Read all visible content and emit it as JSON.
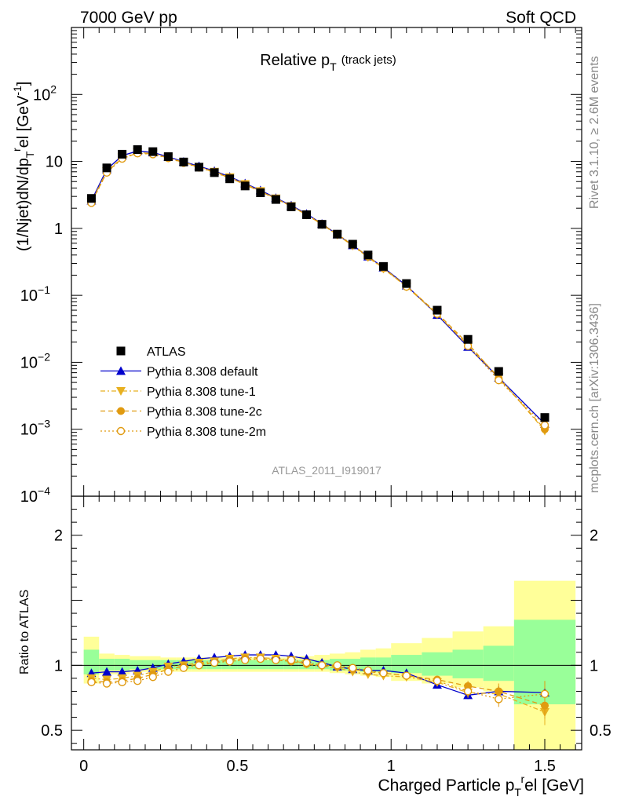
{
  "header": {
    "left": "7000 GeV pp",
    "right": "Soft QCD"
  },
  "title": {
    "main": "Relative p",
    "main_sub": "T",
    "suffix": "(track jets)"
  },
  "side_labels": {
    "rivet": "Rivet 3.1.10, ≥ 2.6M events",
    "mcplots": "mcplots.cern.ch [arXiv:1306.3436]"
  },
  "watermark": "ATLAS_2011_I919017",
  "axes": {
    "ylabel_top": {
      "a": "(1/Njet)dN/dp",
      "a_sub": "T",
      "a_sup": "r",
      "b": "el [GeV",
      "b_sup": "-1",
      "c": "]"
    },
    "ylabel_bottom": "Ratio to ATLAS",
    "xlabel": {
      "a": "Charged Particle p",
      "a_sub": "T",
      "a_sup": "r",
      "b": "el [GeV]"
    },
    "x_ticks": [
      "0",
      "0.5",
      "1",
      "1.5"
    ],
    "y_top_ticks": [
      {
        "v": 0.0001,
        "base": "10",
        "exp": "−4"
      },
      {
        "v": 0.001,
        "base": "10",
        "exp": "−3"
      },
      {
        "v": 0.01,
        "base": "10",
        "exp": "−2"
      },
      {
        "v": 0.1,
        "base": "10",
        "exp": "−1"
      },
      {
        "v": 1,
        "base": "1",
        "exp": ""
      },
      {
        "v": 10,
        "base": "10",
        "exp": ""
      },
      {
        "v": 100,
        "base": "10",
        "exp": "2"
      }
    ],
    "y_bottom_ticks": [
      {
        "v": 0.5,
        "label": "0.5"
      },
      {
        "v": 1,
        "label": "1"
      },
      {
        "v": 2,
        "label": "2"
      }
    ]
  },
  "chart_data": {
    "type": "scatter",
    "xlim": [
      -0.04,
      1.62
    ],
    "ylim_top": [
      0.0001,
      1000
    ],
    "y_scale_top": "log",
    "ylim_ratio": [
      0.35,
      2.3
    ],
    "legend_position": "bottom-left",
    "x": [
      0.025,
      0.075,
      0.125,
      0.175,
      0.225,
      0.275,
      0.325,
      0.375,
      0.425,
      0.475,
      0.525,
      0.575,
      0.625,
      0.675,
      0.725,
      0.775,
      0.825,
      0.875,
      0.925,
      0.975,
      1.05,
      1.15,
      1.25,
      1.35,
      1.5
    ],
    "band_edges": [
      0,
      0.05,
      0.1,
      0.15,
      0.2,
      0.25,
      0.3,
      0.35,
      0.4,
      0.45,
      0.5,
      0.55,
      0.6,
      0.65,
      0.7,
      0.75,
      0.8,
      0.85,
      0.9,
      0.95,
      1.0,
      1.1,
      1.2,
      1.3,
      1.4,
      1.6
    ],
    "band_outer": [
      [
        0.86,
        1.22
      ],
      [
        0.93,
        1.09
      ],
      [
        0.93,
        1.08
      ],
      [
        0.95,
        1.07
      ],
      [
        0.95,
        1.07
      ],
      [
        0.95,
        1.06
      ],
      [
        0.95,
        1.06
      ],
      [
        0.95,
        1.06
      ],
      [
        0.95,
        1.06
      ],
      [
        0.95,
        1.06
      ],
      [
        0.95,
        1.06
      ],
      [
        0.95,
        1.06
      ],
      [
        0.95,
        1.06
      ],
      [
        0.95,
        1.06
      ],
      [
        0.95,
        1.07
      ],
      [
        0.95,
        1.08
      ],
      [
        0.94,
        1.09
      ],
      [
        0.93,
        1.1
      ],
      [
        0.92,
        1.12
      ],
      [
        0.91,
        1.13
      ],
      [
        0.88,
        1.17
      ],
      [
        0.86,
        1.21
      ],
      [
        0.83,
        1.26
      ],
      [
        0.8,
        1.3
      ],
      [
        0.3,
        1.65
      ]
    ],
    "band_inner": [
      [
        0.93,
        1.12
      ],
      [
        0.96,
        1.05
      ],
      [
        0.96,
        1.05
      ],
      [
        0.97,
        1.04
      ],
      [
        0.97,
        1.04
      ],
      [
        0.97,
        1.04
      ],
      [
        0.97,
        1.04
      ],
      [
        0.97,
        1.04
      ],
      [
        0.97,
        1.04
      ],
      [
        0.97,
        1.04
      ],
      [
        0.97,
        1.04
      ],
      [
        0.97,
        1.04
      ],
      [
        0.97,
        1.04
      ],
      [
        0.97,
        1.04
      ],
      [
        0.97,
        1.04
      ],
      [
        0.97,
        1.04
      ],
      [
        0.96,
        1.05
      ],
      [
        0.96,
        1.05
      ],
      [
        0.95,
        1.06
      ],
      [
        0.95,
        1.06
      ],
      [
        0.94,
        1.08
      ],
      [
        0.92,
        1.1
      ],
      [
        0.9,
        1.12
      ],
      [
        0.88,
        1.15
      ],
      [
        0.7,
        1.35
      ]
    ],
    "series": [
      {
        "name": "ATLAS",
        "color": "#000000",
        "marker": "square",
        "line": "none",
        "values": [
          2.8,
          8.0,
          12.8,
          15.0,
          14.0,
          11.8,
          9.8,
          8.2,
          6.8,
          5.5,
          4.3,
          3.4,
          2.7,
          2.1,
          1.6,
          1.15,
          0.82,
          0.58,
          0.4,
          0.27,
          0.15,
          0.06,
          0.022,
          0.0073,
          0.0015
        ]
      },
      {
        "name": "Pythia 8.308 default",
        "color": "#0000cc",
        "marker": "triangle-up",
        "line": "solid",
        "values": [
          2.6,
          7.6,
          12.2,
          14.3,
          13.6,
          11.7,
          9.9,
          8.5,
          7.2,
          5.9,
          4.7,
          3.7,
          2.85,
          2.2,
          1.65,
          1.17,
          0.81,
          0.56,
          0.38,
          0.26,
          0.14,
          0.051,
          0.017,
          0.0059,
          0.0012
        ],
        "ratio": [
          0.94,
          0.95,
          0.95,
          0.96,
          0.98,
          1.01,
          1.03,
          1.05,
          1.06,
          1.07,
          1.08,
          1.08,
          1.08,
          1.07,
          1.05,
          1.02,
          0.99,
          0.97,
          0.96,
          0.96,
          0.94,
          0.85,
          0.77,
          0.8,
          0.79
        ],
        "ratio_err": [
          0.01,
          0.01,
          0.01,
          0.01,
          0.01,
          0.01,
          0.01,
          0.01,
          0.01,
          0.01,
          0.01,
          0.01,
          0.01,
          0.01,
          0.01,
          0.01,
          0.01,
          0.01,
          0.01,
          0.01,
          0.01,
          0.02,
          0.03,
          0.04,
          0.08
        ]
      },
      {
        "name": "Pythia 8.308 tune-1",
        "color": "#e8b020",
        "marker": "triangle-down",
        "line": "dashdot",
        "values": [
          2.5,
          7.1,
          11.4,
          13.6,
          13.1,
          11.4,
          9.7,
          8.3,
          7.0,
          5.8,
          4.6,
          3.6,
          2.8,
          2.15,
          1.6,
          1.14,
          0.8,
          0.55,
          0.37,
          0.25,
          0.135,
          0.052,
          0.018,
          0.006,
          0.00095
        ],
        "ratio": [
          0.9,
          0.89,
          0.9,
          0.92,
          0.95,
          0.99,
          1.0,
          1.02,
          1.03,
          1.05,
          1.06,
          1.06,
          1.05,
          1.04,
          1.01,
          0.99,
          0.98,
          0.95,
          0.93,
          0.92,
          0.91,
          0.87,
          0.79,
          0.78,
          0.64
        ],
        "ratio_err": [
          0.01,
          0.01,
          0.01,
          0.01,
          0.01,
          0.01,
          0.01,
          0.01,
          0.01,
          0.01,
          0.01,
          0.01,
          0.01,
          0.01,
          0.01,
          0.01,
          0.01,
          0.01,
          0.01,
          0.01,
          0.01,
          0.02,
          0.04,
          0.06,
          0.1
        ]
      },
      {
        "name": "Pythia 8.308 tune-2c",
        "color": "#e09a10",
        "marker": "circle",
        "line": "dashed",
        "values": [
          2.45,
          6.9,
          11.1,
          13.3,
          12.9,
          11.3,
          9.6,
          8.2,
          6.9,
          5.7,
          4.5,
          3.55,
          2.78,
          2.13,
          1.6,
          1.15,
          0.81,
          0.56,
          0.38,
          0.255,
          0.138,
          0.054,
          0.019,
          0.0058,
          0.001
        ],
        "ratio": [
          0.88,
          0.87,
          0.88,
          0.9,
          0.93,
          0.97,
          0.99,
          1.01,
          1.02,
          1.04,
          1.05,
          1.05,
          1.04,
          1.03,
          1.01,
          1.0,
          0.99,
          0.97,
          0.95,
          0.94,
          0.92,
          0.89,
          0.84,
          0.8,
          0.69
        ],
        "ratio_err": [
          0.01,
          0.01,
          0.01,
          0.01,
          0.01,
          0.01,
          0.01,
          0.01,
          0.01,
          0.01,
          0.01,
          0.01,
          0.01,
          0.01,
          0.01,
          0.01,
          0.01,
          0.01,
          0.01,
          0.01,
          0.01,
          0.02,
          0.04,
          0.06,
          0.1
        ]
      },
      {
        "name": "Pythia 8.308 tune-2m",
        "color": "#e09a10",
        "marker": "open-circle",
        "line": "dotted",
        "values": [
          2.4,
          6.8,
          11.0,
          13.2,
          12.8,
          11.2,
          9.5,
          8.1,
          6.85,
          5.65,
          4.5,
          3.55,
          2.78,
          2.15,
          1.62,
          1.17,
          0.82,
          0.57,
          0.38,
          0.255,
          0.135,
          0.053,
          0.0175,
          0.0054,
          0.00115
        ],
        "ratio": [
          0.87,
          0.86,
          0.87,
          0.88,
          0.91,
          0.95,
          0.98,
          1.0,
          1.02,
          1.03,
          1.04,
          1.05,
          1.04,
          1.04,
          1.02,
          1.0,
          1.0,
          0.98,
          0.96,
          0.94,
          0.92,
          0.88,
          0.8,
          0.74,
          0.78
        ],
        "ratio_err": [
          0.01,
          0.01,
          0.01,
          0.01,
          0.01,
          0.01,
          0.01,
          0.01,
          0.01,
          0.01,
          0.01,
          0.01,
          0.01,
          0.01,
          0.01,
          0.01,
          0.01,
          0.01,
          0.01,
          0.01,
          0.01,
          0.02,
          0.04,
          0.06,
          0.1
        ]
      }
    ]
  }
}
